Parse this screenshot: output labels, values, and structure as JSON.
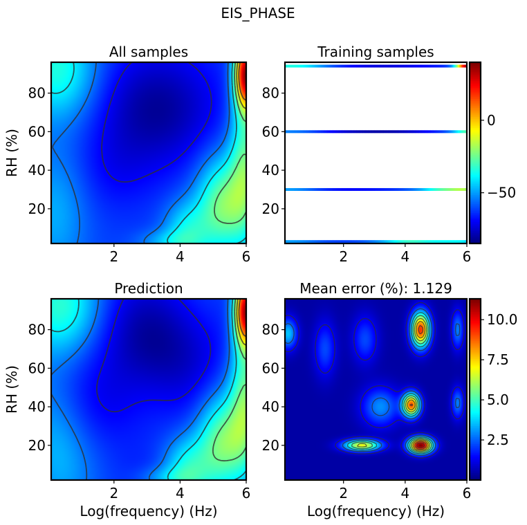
{
  "suptitle": "EIS_PHASE",
  "colors": {
    "contour_line": "#2f2f2f",
    "frame": "#000000",
    "jet": [
      "#00007f",
      "#0000ff",
      "#007fff",
      "#00ffff",
      "#7fff7f",
      "#ffff00",
      "#ff7f00",
      "#ff0000",
      "#7f0000"
    ]
  },
  "chart_data": [
    {
      "id": "all",
      "type": "heatmap",
      "title": "All samples",
      "xlabel": "",
      "ylabel": "RH (%)",
      "xlim": [
        0.1,
        6
      ],
      "ylim": [
        2,
        96
      ],
      "xticks": [
        2,
        4,
        6
      ],
      "yticks": [
        20,
        40,
        60,
        80
      ],
      "grid": false,
      "colorscale": "jet",
      "field": "phase",
      "clim": [
        -85,
        40
      ],
      "contours": [
        -70,
        -55,
        -40,
        -25,
        -10,
        5
      ]
    },
    {
      "id": "training",
      "type": "heatmap",
      "title": "Training samples",
      "xlabel": "",
      "ylabel": "",
      "xlim": [
        0.1,
        6
      ],
      "ylim": [
        2,
        96
      ],
      "xticks": [
        2,
        4,
        6
      ],
      "yticks": [
        20,
        40,
        60,
        80
      ],
      "grid": false,
      "colorscale": "jet",
      "field": "phase",
      "training_rh": [
        3,
        30,
        60,
        94
      ],
      "colorbar": {
        "ticks": [
          0,
          -50
        ],
        "tick_labels": [
          "0",
          "−50"
        ],
        "range": [
          -85,
          40
        ]
      }
    },
    {
      "id": "prediction",
      "type": "heatmap",
      "title": "Prediction",
      "xlabel": "Log(frequency) (Hz)",
      "ylabel": "RH (%)",
      "xlim": [
        0.1,
        6
      ],
      "ylim": [
        2,
        96
      ],
      "xticks": [
        2,
        4,
        6
      ],
      "yticks": [
        20,
        40,
        60,
        80
      ],
      "grid": false,
      "colorscale": "jet",
      "field": "phase_pred",
      "clim": [
        -85,
        40
      ],
      "contours": [
        -70,
        -55,
        -40,
        -25,
        -10,
        5
      ]
    },
    {
      "id": "error",
      "type": "heatmap",
      "title": "Mean error (%): 1.129",
      "xlabel": "Log(frequency) (Hz)",
      "ylabel": "",
      "xlim": [
        0.1,
        6
      ],
      "ylim": [
        2,
        96
      ],
      "xticks": [
        2,
        4,
        6
      ],
      "yticks": [
        20,
        40,
        60,
        80
      ],
      "grid": false,
      "colorscale": "jet",
      "field": "error",
      "clim": [
        0,
        11.3
      ],
      "contours": [
        1.2,
        2.5,
        3.8,
        5,
        6.3,
        7.5,
        8.8,
        10
      ],
      "colorbar": {
        "ticks": [
          2.5,
          5,
          7.5,
          10
        ],
        "tick_labels": [
          "2.5",
          "5.0",
          "7.5",
          "10.0"
        ],
        "range": [
          0,
          11.3
        ]
      }
    }
  ]
}
